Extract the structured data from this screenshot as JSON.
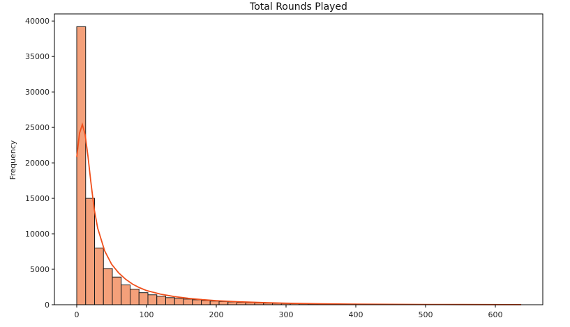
{
  "chart_data": {
    "type": "bar",
    "title": "Total Rounds Played",
    "xlabel": "",
    "ylabel": "Frequency",
    "xlim": [
      -32,
      668
    ],
    "ylim": [
      0,
      41000
    ],
    "xticks": [
      0,
      100,
      200,
      300,
      400,
      500,
      600
    ],
    "yticks": [
      0,
      5000,
      10000,
      15000,
      20000,
      25000,
      30000,
      35000,
      40000
    ],
    "grid": false,
    "bin_width": 12.75,
    "bin_start": 0,
    "counts": [
      39200,
      15000,
      8000,
      5100,
      3900,
      2800,
      2200,
      1700,
      1400,
      1200,
      1000,
      900,
      800,
      700,
      600,
      520,
      460,
      400,
      340,
      300,
      260,
      230,
      200,
      175,
      155,
      135,
      120,
      105,
      95,
      85,
      75,
      65,
      58,
      52,
      46,
      40,
      35,
      30,
      26,
      22,
      19,
      16,
      14,
      12,
      10,
      8,
      6,
      5,
      4,
      3
    ],
    "kde": {
      "x": [
        0,
        4,
        8,
        12,
        16,
        20,
        25,
        30,
        40,
        50,
        60,
        70,
        80,
        90,
        100,
        120,
        140,
        160,
        180,
        200,
        230,
        260,
        300,
        350,
        400,
        450,
        500,
        550,
        600,
        637
      ],
      "y": [
        20800,
        24200,
        25400,
        24000,
        21000,
        17500,
        13500,
        10800,
        7600,
        5700,
        4500,
        3600,
        2900,
        2400,
        2000,
        1500,
        1150,
        900,
        720,
        580,
        430,
        320,
        220,
        140,
        90,
        60,
        40,
        25,
        15,
        10
      ]
    },
    "colors": {
      "bar_fill": "#f4a07a",
      "bar_edge": "#1a1a1a",
      "kde_line": "#f0501c"
    }
  }
}
